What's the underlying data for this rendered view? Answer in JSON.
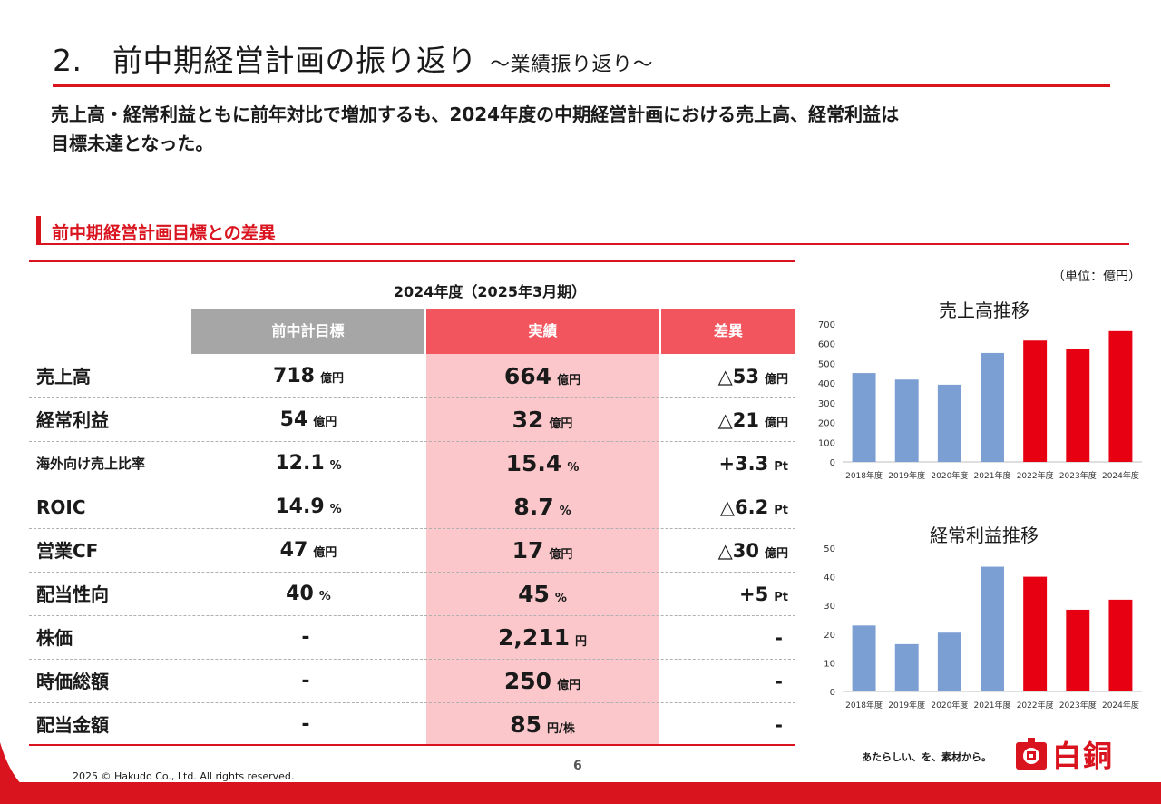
{
  "header": {
    "title": "2.　前中期経営計画の振り返り",
    "subtitle": "～業績振り返り～",
    "summary_line1": "売上高・経常利益ともに前年対比で増加するも、2024年度の中期経営計画における売上高、経常利益は",
    "summary_line2": "目標未達となった。"
  },
  "section": {
    "title": "前中期経営計画目標との差異"
  },
  "table": {
    "fiscal_year": "2024年度（2025年3月期）",
    "columns": [
      "前中計目標",
      "実績",
      "差異"
    ],
    "rows": [
      {
        "label": "売上高",
        "plan": "718",
        "plan_unit": "億円",
        "actual": "664",
        "actual_unit": "億円",
        "diff": "△53",
        "diff_unit": "億円"
      },
      {
        "label": "経常利益",
        "plan": "54",
        "plan_unit": "億円",
        "actual": "32",
        "actual_unit": "億円",
        "diff": "△21",
        "diff_unit": "億円"
      },
      {
        "label": "海外向け売上比率",
        "plan": "12.1",
        "plan_unit": "%",
        "actual": "15.4",
        "actual_unit": "%",
        "diff": "+3.3",
        "diff_unit": "Pt"
      },
      {
        "label": "ROIC",
        "plan": "14.9",
        "plan_unit": "%",
        "actual": "8.7",
        "actual_unit": "%",
        "diff": "△6.2",
        "diff_unit": "Pt"
      },
      {
        "label": "営業CF",
        "plan": "47",
        "plan_unit": "億円",
        "actual": "17",
        "actual_unit": "億円",
        "diff": "△30",
        "diff_unit": "億円"
      },
      {
        "label": "配当性向",
        "plan": "40",
        "plan_unit": "%",
        "actual": "45",
        "actual_unit": "%",
        "diff": "+5",
        "diff_unit": "Pt"
      },
      {
        "label": "株価",
        "plan": "-",
        "plan_unit": "",
        "actual": "2,211",
        "actual_unit": "円",
        "diff": "-",
        "diff_unit": ""
      },
      {
        "label": "時価総額",
        "plan": "-",
        "plan_unit": "",
        "actual": "250",
        "actual_unit": "億円",
        "diff": "-",
        "diff_unit": ""
      },
      {
        "label": "配当金額",
        "plan": "-",
        "plan_unit": "",
        "actual": "85",
        "actual_unit": "円/株",
        "diff": "-",
        "diff_unit": ""
      }
    ]
  },
  "unit_note": "（単位：億円）",
  "colors": {
    "accent": "#d9141f",
    "past_bar": "#7b9fd2",
    "recent_bar": "#e60012",
    "actual_bg": "#fbc7ca",
    "header_gray": "#a6a6a6",
    "header_red": "#f2555e"
  },
  "chart_data": [
    {
      "type": "bar",
      "title": "売上高推移",
      "categories": [
        "2018年度",
        "2019年度",
        "2020年度",
        "2021年度",
        "2022年度",
        "2023年度",
        "2024年度"
      ],
      "values": [
        451,
        418,
        392,
        553,
        616,
        571,
        664
      ],
      "bar_colors": [
        "#7b9fd2",
        "#7b9fd2",
        "#7b9fd2",
        "#7b9fd2",
        "#e60012",
        "#e60012",
        "#e60012"
      ],
      "yticks": [
        0,
        100,
        200,
        300,
        400,
        500,
        600,
        700
      ],
      "ylim": [
        0,
        700
      ],
      "grid": false
    },
    {
      "type": "bar",
      "title": "経常利益推移",
      "categories": [
        "2018年度",
        "2019年度",
        "2020年度",
        "2021年度",
        "2022年度",
        "2023年度",
        "2024年度"
      ],
      "values": [
        23,
        16.5,
        20.5,
        43.5,
        40,
        28.5,
        32
      ],
      "bar_colors": [
        "#7b9fd2",
        "#7b9fd2",
        "#7b9fd2",
        "#7b9fd2",
        "#e60012",
        "#e60012",
        "#e60012"
      ],
      "yticks": [
        0,
        10,
        20,
        30,
        40,
        50
      ],
      "ylim": [
        0,
        50
      ],
      "grid": false
    }
  ],
  "footer": {
    "copyright": "2025 © Hakudo Co., Ltd. All rights reserved.",
    "page": "6",
    "tagline": "あたらしい、を、素材から。",
    "logo_text": "白銅"
  }
}
